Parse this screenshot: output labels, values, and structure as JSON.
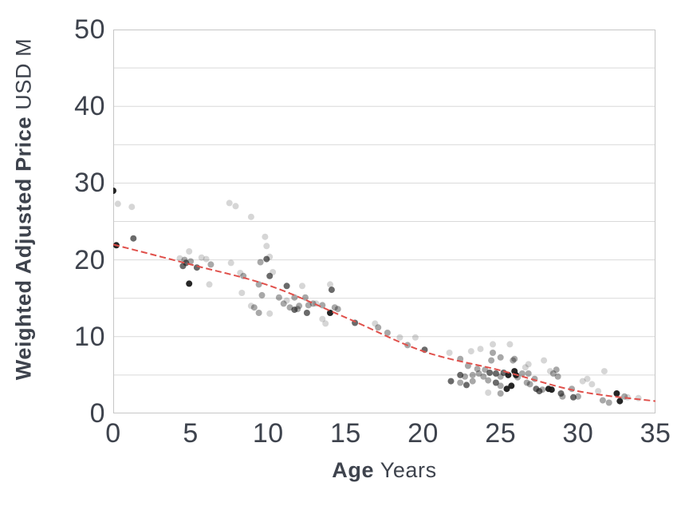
{
  "chart_data": {
    "type": "scatter",
    "xlabel_bold": "Age",
    "xlabel_unit": "Years",
    "ylabel_bold": "Weighted Adjusted Price",
    "ylabel_unit": "USD M",
    "xlim": [
      0,
      35
    ],
    "ylim": [
      0,
      50
    ],
    "x_ticks": [
      "0",
      "5",
      "10",
      "15",
      "20",
      "25",
      "30",
      "35"
    ],
    "y_ticks": [
      "0",
      "10",
      "20",
      "30",
      "40",
      "50"
    ],
    "grid_step": 5,
    "grid": "horizontal-only",
    "legend": "none",
    "colors": {
      "trend": "#e0504b",
      "point": "#1a1a1a",
      "grid": "#d9d9d9",
      "border": "#c6c6c6",
      "text": "#3e434d"
    },
    "point_opacity": {
      "l": 0.18,
      "m": 0.38,
      "d": 0.65,
      "k": 0.95
    },
    "trend_line": {
      "style": "dashed",
      "points": [
        [
          0,
          22
        ],
        [
          5,
          19.4
        ],
        [
          10,
          16.7
        ],
        [
          15,
          12.5
        ],
        [
          20,
          8.1
        ],
        [
          25,
          5.6
        ],
        [
          30,
          2.9
        ],
        [
          35,
          1.6
        ]
      ]
    },
    "points": [
      [
        0,
        29,
        "k"
      ],
      [
        0.3,
        27.3,
        "l"
      ],
      [
        1.2,
        26.9,
        "l"
      ],
      [
        1.3,
        22.8,
        "d"
      ],
      [
        0.2,
        21.9,
        "k"
      ],
      [
        4.3,
        20.2,
        "l"
      ],
      [
        4.6,
        20,
        "m"
      ],
      [
        4.7,
        19.6,
        "d"
      ],
      [
        4.5,
        19.2,
        "d"
      ],
      [
        4.9,
        21.1,
        "l"
      ],
      [
        5,
        19.8,
        "m"
      ],
      [
        5.4,
        19,
        "d"
      ],
      [
        5.7,
        20.3,
        "l"
      ],
      [
        6,
        20.1,
        "l"
      ],
      [
        6.3,
        19.4,
        "m"
      ],
      [
        4.9,
        16.9,
        "k"
      ],
      [
        6.2,
        16.8,
        "l"
      ],
      [
        7.5,
        27.4,
        "l"
      ],
      [
        7.9,
        27,
        "l"
      ],
      [
        8.9,
        25.6,
        "l"
      ],
      [
        9.8,
        23,
        "l"
      ],
      [
        9.9,
        21.8,
        "l"
      ],
      [
        10.1,
        20.4,
        "l"
      ],
      [
        9.5,
        19.7,
        "m"
      ],
      [
        9.9,
        20.1,
        "d"
      ],
      [
        7.6,
        19.6,
        "l"
      ],
      [
        8.2,
        18.3,
        "l"
      ],
      [
        8.4,
        17.9,
        "m"
      ],
      [
        9.4,
        16.8,
        "m"
      ],
      [
        10.1,
        17.9,
        "d"
      ],
      [
        10.3,
        18.4,
        "l"
      ],
      [
        9.6,
        15.4,
        "m"
      ],
      [
        8.3,
        15.7,
        "l"
      ],
      [
        8.9,
        14,
        "l"
      ],
      [
        9.1,
        13.8,
        "m"
      ],
      [
        9.4,
        13.1,
        "m"
      ],
      [
        10.1,
        13,
        "l"
      ],
      [
        10.7,
        15.1,
        "m"
      ],
      [
        11,
        14.3,
        "m"
      ],
      [
        11.2,
        14.7,
        "l"
      ],
      [
        11.2,
        16.6,
        "d"
      ],
      [
        11.4,
        13.8,
        "m"
      ],
      [
        11.7,
        15.1,
        "m"
      ],
      [
        11.7,
        13.5,
        "d"
      ],
      [
        11.9,
        13.6,
        "m"
      ],
      [
        12,
        14,
        "m"
      ],
      [
        12.2,
        16.6,
        "l"
      ],
      [
        12.4,
        15.1,
        "m"
      ],
      [
        12.6,
        14.1,
        "m"
      ],
      [
        12.9,
        14.3,
        "m"
      ],
      [
        13.1,
        14.3,
        "l"
      ],
      [
        12.5,
        13.1,
        "d"
      ],
      [
        13.5,
        14.1,
        "m"
      ],
      [
        14,
        16.8,
        "l"
      ],
      [
        14.1,
        16.1,
        "d"
      ],
      [
        14,
        13.1,
        "k"
      ],
      [
        14.3,
        13.8,
        "m"
      ],
      [
        14.5,
        13.6,
        "m"
      ],
      [
        13.5,
        12.3,
        "l"
      ],
      [
        13.7,
        11.7,
        "l"
      ],
      [
        15.6,
        11.8,
        "d"
      ],
      [
        16.9,
        11.7,
        "l"
      ],
      [
        17.1,
        11.2,
        "m"
      ],
      [
        17.7,
        10.5,
        "m"
      ],
      [
        18.5,
        9.9,
        "l"
      ],
      [
        19.5,
        9.9,
        "l"
      ],
      [
        19,
        8.9,
        "m"
      ],
      [
        20.1,
        8.3,
        "d"
      ],
      [
        21.7,
        7.9,
        "l"
      ],
      [
        23.1,
        8.1,
        "l"
      ],
      [
        23.7,
        8.4,
        "l"
      ],
      [
        24.5,
        9,
        "l"
      ],
      [
        25.6,
        9,
        "l"
      ],
      [
        24.5,
        7.9,
        "m"
      ],
      [
        22.4,
        7.1,
        "m"
      ],
      [
        24.4,
        6.9,
        "m"
      ],
      [
        25,
        7.3,
        "m"
      ],
      [
        25.9,
        7.1,
        "m"
      ],
      [
        22.9,
        6.2,
        "m"
      ],
      [
        23.5,
        5.8,
        "m"
      ],
      [
        24,
        5.7,
        "m"
      ],
      [
        22.4,
        5,
        "d"
      ],
      [
        22.7,
        4.8,
        "m"
      ],
      [
        23.2,
        5,
        "m"
      ],
      [
        23.6,
        5.2,
        "m"
      ],
      [
        23.9,
        4.8,
        "m"
      ],
      [
        24.3,
        5.3,
        "d"
      ],
      [
        24.7,
        5.2,
        "d"
      ],
      [
        25,
        4.8,
        "m"
      ],
      [
        25.2,
        5.3,
        "d"
      ],
      [
        25.5,
        5,
        "k"
      ],
      [
        25.9,
        5.5,
        "k"
      ],
      [
        26,
        5,
        "k"
      ],
      [
        21.8,
        4.2,
        "d"
      ],
      [
        22.4,
        4,
        "m"
      ],
      [
        22.8,
        3.7,
        "d"
      ],
      [
        23.2,
        4.2,
        "m"
      ],
      [
        24.2,
        4.3,
        "m"
      ],
      [
        24.7,
        4,
        "d"
      ],
      [
        25,
        3.6,
        "m"
      ],
      [
        25.4,
        3.2,
        "k"
      ],
      [
        25.7,
        3.6,
        "k"
      ],
      [
        24.2,
        2.7,
        "l"
      ],
      [
        25,
        2.6,
        "m"
      ],
      [
        25.8,
        6.9,
        "m"
      ],
      [
        26.1,
        4.7,
        "m"
      ],
      [
        26.4,
        5.2,
        "m"
      ],
      [
        26.6,
        6,
        "l"
      ],
      [
        26.8,
        6.4,
        "l"
      ],
      [
        26.8,
        5.2,
        "m"
      ],
      [
        26.7,
        4,
        "m"
      ],
      [
        26.9,
        3.8,
        "m"
      ],
      [
        27.2,
        4.5,
        "m"
      ],
      [
        27.8,
        6.9,
        "l"
      ],
      [
        28.2,
        5.5,
        "l"
      ],
      [
        28.4,
        5.2,
        "m"
      ],
      [
        28.6,
        5.7,
        "m"
      ],
      [
        28.7,
        4.8,
        "m"
      ],
      [
        27.3,
        3.2,
        "d"
      ],
      [
        27.5,
        2.9,
        "d"
      ],
      [
        27.7,
        3.1,
        "m"
      ],
      [
        28.1,
        3.2,
        "k"
      ],
      [
        28.3,
        3.1,
        "k"
      ],
      [
        28.9,
        2.6,
        "d"
      ],
      [
        29,
        2.2,
        "m"
      ],
      [
        29.6,
        3.2,
        "m"
      ],
      [
        29.7,
        2.1,
        "d"
      ],
      [
        30,
        2.2,
        "m"
      ],
      [
        30.3,
        4.2,
        "l"
      ],
      [
        30.6,
        4.5,
        "l"
      ],
      [
        30.9,
        3.8,
        "l"
      ],
      [
        31.3,
        2.9,
        "l"
      ],
      [
        31.7,
        5.5,
        "l"
      ],
      [
        31.6,
        1.7,
        "m"
      ],
      [
        32,
        1.4,
        "m"
      ],
      [
        32.5,
        2.6,
        "k"
      ],
      [
        32.7,
        1.6,
        "k"
      ],
      [
        33,
        2.2,
        "m"
      ],
      [
        33.2,
        2.1,
        "l"
      ],
      [
        33.9,
        2,
        "l"
      ]
    ]
  }
}
